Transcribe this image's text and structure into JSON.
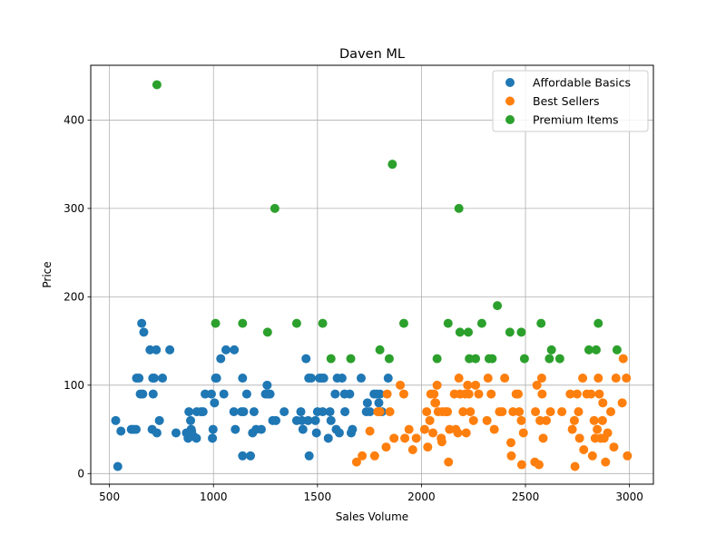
{
  "chart_data": {
    "type": "scatter",
    "title": "Daven ML",
    "xlabel": "Sales Volume",
    "ylabel": "Price",
    "xlim": [
      410,
      3115
    ],
    "ylim": [
      -12,
      462
    ],
    "xticks": [
      500,
      1000,
      1500,
      2000,
      2500,
      3000
    ],
    "yticks": [
      0,
      100,
      200,
      300,
      400
    ],
    "grid": true,
    "legend_position": "top-right",
    "series": [
      {
        "name": "Affordable Basics",
        "color": "#1f77b4",
        "points": [
          [
            530,
            60
          ],
          [
            540,
            8
          ],
          [
            555,
            48
          ],
          [
            605,
            50
          ],
          [
            615,
            50
          ],
          [
            628,
            50
          ],
          [
            630,
            108
          ],
          [
            642,
            108
          ],
          [
            648,
            90
          ],
          [
            655,
            170
          ],
          [
            660,
            90
          ],
          [
            665,
            160
          ],
          [
            695,
            140
          ],
          [
            705,
            50
          ],
          [
            708,
            108
          ],
          [
            710,
            90
          ],
          [
            715,
            108
          ],
          [
            725,
            140
          ],
          [
            728,
            46
          ],
          [
            740,
            60
          ],
          [
            755,
            108
          ],
          [
            790,
            140
          ],
          [
            820,
            46
          ],
          [
            870,
            46
          ],
          [
            878,
            40
          ],
          [
            882,
            70
          ],
          [
            890,
            60
          ],
          [
            893,
            50
          ],
          [
            895,
            48
          ],
          [
            905,
            42
          ],
          [
            918,
            40
          ],
          [
            920,
            70
          ],
          [
            940,
            70
          ],
          [
            950,
            70
          ],
          [
            960,
            90
          ],
          [
            990,
            90
          ],
          [
            995,
            40
          ],
          [
            998,
            50
          ],
          [
            1005,
            80
          ],
          [
            1010,
            108
          ],
          [
            1015,
            108
          ],
          [
            1035,
            130
          ],
          [
            1050,
            90
          ],
          [
            1060,
            140
          ],
          [
            1100,
            140
          ],
          [
            1098,
            70
          ],
          [
            1105,
            50
          ],
          [
            1135,
            70
          ],
          [
            1140,
            20
          ],
          [
            1140,
            108
          ],
          [
            1145,
            70
          ],
          [
            1160,
            90
          ],
          [
            1178,
            20
          ],
          [
            1188,
            46
          ],
          [
            1195,
            70
          ],
          [
            1205,
            50
          ],
          [
            1230,
            50
          ],
          [
            1250,
            90
          ],
          [
            1258,
            100
          ],
          [
            1262,
            90
          ],
          [
            1272,
            90
          ],
          [
            1285,
            60
          ],
          [
            1300,
            60
          ],
          [
            1340,
            70
          ],
          [
            1400,
            60
          ],
          [
            1420,
            70
          ],
          [
            1425,
            60
          ],
          [
            1430,
            50
          ],
          [
            1445,
            130
          ],
          [
            1455,
            60
          ],
          [
            1460,
            20
          ],
          [
            1458,
            108
          ],
          [
            1470,
            108
          ],
          [
            1490,
            60
          ],
          [
            1495,
            46
          ],
          [
            1500,
            70
          ],
          [
            1510,
            108
          ],
          [
            1520,
            108
          ],
          [
            1525,
            70
          ],
          [
            1530,
            108
          ],
          [
            1552,
            40
          ],
          [
            1560,
            70
          ],
          [
            1565,
            60
          ],
          [
            1585,
            90
          ],
          [
            1590,
            50
          ],
          [
            1595,
            108
          ],
          [
            1605,
            46
          ],
          [
            1618,
            108
          ],
          [
            1630,
            90
          ],
          [
            1632,
            70
          ],
          [
            1655,
            90
          ],
          [
            1662,
            46
          ],
          [
            1668,
            50
          ],
          [
            1710,
            108
          ],
          [
            1735,
            70
          ],
          [
            1740,
            80
          ],
          [
            1752,
            70
          ],
          [
            1772,
            90
          ],
          [
            1785,
            90
          ],
          [
            1795,
            80
          ],
          [
            1800,
            90
          ],
          [
            1810,
            70
          ],
          [
            1840,
            108
          ]
        ]
      },
      {
        "name": "Best Sellers",
        "color": "#ff7f0e",
        "points": [
          [
            1688,
            13
          ],
          [
            1715,
            20
          ],
          [
            1752,
            48
          ],
          [
            1775,
            20
          ],
          [
            1790,
            70
          ],
          [
            1800,
            70
          ],
          [
            1830,
            30
          ],
          [
            1835,
            90
          ],
          [
            1848,
            70
          ],
          [
            1868,
            40
          ],
          [
            1898,
            100
          ],
          [
            1915,
            90
          ],
          [
            1920,
            40
          ],
          [
            1940,
            50
          ],
          [
            1958,
            27
          ],
          [
            1975,
            40
          ],
          [
            2015,
            50
          ],
          [
            2025,
            70
          ],
          [
            2030,
            30
          ],
          [
            2040,
            60
          ],
          [
            2045,
            90
          ],
          [
            2055,
            46
          ],
          [
            2060,
            90
          ],
          [
            2065,
            80
          ],
          [
            2068,
            80
          ],
          [
            2075,
            100
          ],
          [
            2080,
            70
          ],
          [
            2095,
            40
          ],
          [
            2098,
            36
          ],
          [
            2100,
            70
          ],
          [
            2115,
            70
          ],
          [
            2125,
            70
          ],
          [
            2130,
            13
          ],
          [
            2135,
            50
          ],
          [
            2158,
            90
          ],
          [
            2165,
            50
          ],
          [
            2175,
            46
          ],
          [
            2180,
            108
          ],
          [
            2185,
            90
          ],
          [
            2200,
            70
          ],
          [
            2210,
            90
          ],
          [
            2215,
            46
          ],
          [
            2222,
            100
          ],
          [
            2228,
            90
          ],
          [
            2235,
            70
          ],
          [
            2250,
            60
          ],
          [
            2260,
            100
          ],
          [
            2275,
            90
          ],
          [
            2315,
            60
          ],
          [
            2320,
            108
          ],
          [
            2335,
            90
          ],
          [
            2350,
            50
          ],
          [
            2375,
            70
          ],
          [
            2388,
            70
          ],
          [
            2400,
            108
          ],
          [
            2430,
            35
          ],
          [
            2432,
            20
          ],
          [
            2440,
            70
          ],
          [
            2455,
            90
          ],
          [
            2465,
            90
          ],
          [
            2470,
            70
          ],
          [
            2480,
            60
          ],
          [
            2482,
            10
          ],
          [
            2490,
            46
          ],
          [
            2545,
            13
          ],
          [
            2548,
            70
          ],
          [
            2555,
            100
          ],
          [
            2565,
            10
          ],
          [
            2570,
            60
          ],
          [
            2578,
            108
          ],
          [
            2580,
            90
          ],
          [
            2585,
            40
          ],
          [
            2600,
            60
          ],
          [
            2620,
            70
          ],
          [
            2675,
            70
          ],
          [
            2715,
            90
          ],
          [
            2725,
            50
          ],
          [
            2735,
            60
          ],
          [
            2738,
            8
          ],
          [
            2748,
            90
          ],
          [
            2755,
            70
          ],
          [
            2760,
            40
          ],
          [
            2775,
            108
          ],
          [
            2780,
            27
          ],
          [
            2795,
            90
          ],
          [
            2815,
            90
          ],
          [
            2822,
            20
          ],
          [
            2830,
            60
          ],
          [
            2835,
            40
          ],
          [
            2845,
            50
          ],
          [
            2850,
            108
          ],
          [
            2855,
            90
          ],
          [
            2862,
            40
          ],
          [
            2870,
            60
          ],
          [
            2872,
            80
          ],
          [
            2878,
            40
          ],
          [
            2885,
            13
          ],
          [
            2895,
            46
          ],
          [
            2910,
            70
          ],
          [
            2925,
            30
          ],
          [
            2935,
            108
          ],
          [
            2965,
            80
          ],
          [
            2970,
            130
          ],
          [
            2985,
            108
          ],
          [
            2990,
            20
          ]
        ]
      },
      {
        "name": "Premium Items",
        "color": "#2ca02c",
        "points": [
          [
            728,
            440
          ],
          [
            1010,
            170
          ],
          [
            1140,
            170
          ],
          [
            1260,
            160
          ],
          [
            1295,
            300
          ],
          [
            1400,
            170
          ],
          [
            1525,
            170
          ],
          [
            1565,
            130
          ],
          [
            1660,
            130
          ],
          [
            1800,
            140
          ],
          [
            1845,
            130
          ],
          [
            1860,
            350
          ],
          [
            1915,
            170
          ],
          [
            2075,
            130
          ],
          [
            2128,
            170
          ],
          [
            2180,
            300
          ],
          [
            2185,
            160
          ],
          [
            2225,
            160
          ],
          [
            2230,
            130
          ],
          [
            2260,
            130
          ],
          [
            2290,
            170
          ],
          [
            2325,
            130
          ],
          [
            2340,
            130
          ],
          [
            2365,
            190
          ],
          [
            2425,
            160
          ],
          [
            2480,
            160
          ],
          [
            2495,
            130
          ],
          [
            2575,
            170
          ],
          [
            2615,
            130
          ],
          [
            2625,
            140
          ],
          [
            2665,
            130
          ],
          [
            2805,
            140
          ],
          [
            2840,
            140
          ],
          [
            2850,
            170
          ],
          [
            2940,
            140
          ]
        ]
      }
    ]
  }
}
